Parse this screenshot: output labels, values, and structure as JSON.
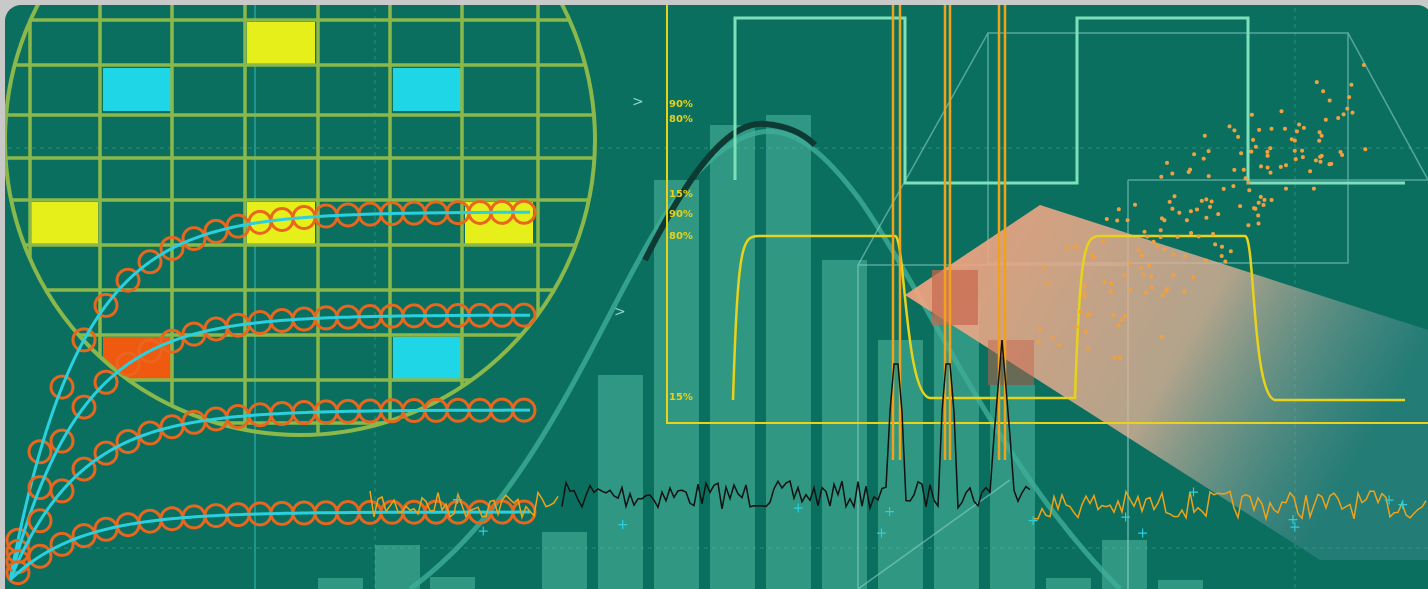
{
  "axis_labels": {
    "upper": [
      "90%",
      "80%",
      "15%"
    ],
    "lower": [
      "90%",
      "80%",
      "15%"
    ]
  }
}
